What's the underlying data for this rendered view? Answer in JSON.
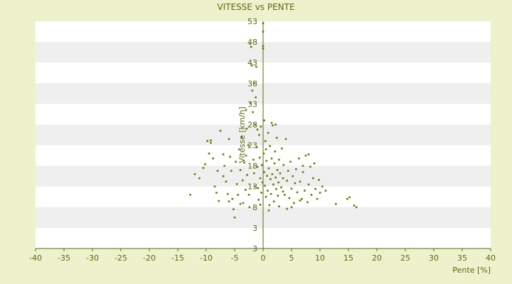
{
  "chart_data": {
    "type": "scatter",
    "title": "VITESSE vs PENTE",
    "xlabel": "Pente [%]",
    "ylabel": "Vitesse [km/h]",
    "xlim": [
      -40,
      40
    ],
    "ylim": [
      3,
      53
    ],
    "x_ticks": [
      "-40",
      "-35",
      "-30",
      "-25",
      "-20",
      "-15",
      "-10",
      "-5",
      "0",
      "5",
      "10",
      "15",
      "20",
      "25",
      "30",
      "35",
      "40"
    ],
    "y_ticks": [
      "3",
      "3",
      "8",
      "13",
      "18",
      "23",
      "28",
      "33",
      "38",
      "43",
      "48",
      "53"
    ],
    "y_tick_values": [
      0,
      3,
      8,
      13,
      18,
      23,
      28,
      33,
      38,
      43,
      48,
      53
    ],
    "grid": "horizontal bands",
    "colors": {
      "background": "#eef2cc",
      "band_light": "#ffffff",
      "band_dark": "#efefef",
      "text": "#5a6a10",
      "marker": "#6b7a00",
      "axis": "#5a6a10"
    },
    "points": [
      [
        -12.8,
        11.0
      ],
      [
        -12.0,
        16.0
      ],
      [
        -11.2,
        15.0
      ],
      [
        -10.5,
        17.5
      ],
      [
        -10.2,
        18.4
      ],
      [
        -9.8,
        24.0
      ],
      [
        -9.5,
        21.0
      ],
      [
        -9.2,
        23.6
      ],
      [
        -8.8,
        19.8
      ],
      [
        -8.5,
        13.0
      ],
      [
        -8.2,
        11.5
      ],
      [
        -7.8,
        9.5
      ],
      [
        -7.5,
        26.5
      ],
      [
        -7.0,
        15.5
      ],
      [
        -6.8,
        18.0
      ],
      [
        -6.5,
        14.2
      ],
      [
        -6.2,
        11.2
      ],
      [
        -6.0,
        24.5
      ],
      [
        -5.8,
        20.2
      ],
      [
        -5.6,
        16.8
      ],
      [
        -5.4,
        10.0
      ],
      [
        -5.2,
        7.5
      ],
      [
        -5.0,
        5.5
      ],
      [
        -4.8,
        19.0
      ],
      [
        -4.6,
        13.6
      ],
      [
        -4.4,
        11.0
      ],
      [
        -4.2,
        22.0
      ],
      [
        -4.0,
        17.0
      ],
      [
        -3.8,
        25.0
      ],
      [
        -3.6,
        14.5
      ],
      [
        -3.5,
        9.0
      ],
      [
        -3.3,
        18.8
      ],
      [
        -3.1,
        12.2
      ],
      [
        -3.0,
        20.5
      ],
      [
        -2.9,
        27.0
      ],
      [
        -2.8,
        15.8
      ],
      [
        -2.6,
        23.0
      ],
      [
        -2.5,
        11.0
      ],
      [
        -2.4,
        8.0
      ],
      [
        -2.3,
        47.6
      ],
      [
        -2.1,
        46.8
      ],
      [
        -2.0,
        42.3
      ],
      [
        -1.9,
        36.2
      ],
      [
        -1.8,
        31.0
      ],
      [
        -1.7,
        19.5
      ],
      [
        -1.6,
        16.2
      ],
      [
        -1.5,
        13.0
      ],
      [
        -1.4,
        28.0
      ],
      [
        -1.3,
        34.6
      ],
      [
        -1.2,
        42.0
      ],
      [
        -1.1,
        22.5
      ],
      [
        -1.0,
        17.8
      ],
      [
        -0.9,
        12.6
      ],
      [
        -0.8,
        9.8
      ],
      [
        -0.7,
        25.5
      ],
      [
        -0.6,
        20.0
      ],
      [
        -0.5,
        15.0
      ],
      [
        -0.4,
        27.5
      ],
      [
        -0.3,
        11.5
      ],
      [
        -0.2,
        18.2
      ],
      [
        -0.1,
        14.0
      ],
      [
        0.0,
        52.5
      ],
      [
        0.0,
        50.5
      ],
      [
        0.0,
        47.0
      ],
      [
        0.0,
        46.4
      ],
      [
        0.1,
        21.0
      ],
      [
        0.2,
        16.5
      ],
      [
        0.3,
        13.2
      ],
      [
        0.4,
        24.0
      ],
      [
        0.5,
        10.5
      ],
      [
        0.6,
        19.2
      ],
      [
        0.7,
        15.6
      ],
      [
        0.8,
        12.0
      ],
      [
        0.9,
        26.0
      ],
      [
        1.0,
        17.4
      ],
      [
        1.1,
        8.5
      ],
      [
        1.2,
        22.8
      ],
      [
        1.3,
        14.8
      ],
      [
        1.4,
        11.2
      ],
      [
        1.5,
        19.8
      ],
      [
        1.6,
        16.0
      ],
      [
        1.7,
        27.8
      ],
      [
        1.8,
        13.5
      ],
      [
        1.9,
        9.4
      ],
      [
        2.0,
        18.6
      ],
      [
        2.1,
        21.5
      ],
      [
        2.2,
        15.2
      ],
      [
        2.3,
        12.4
      ],
      [
        2.4,
        24.8
      ],
      [
        2.5,
        17.0
      ],
      [
        2.6,
        10.8
      ],
      [
        2.7,
        14.0
      ],
      [
        2.8,
        19.5
      ],
      [
        3.0,
        16.2
      ],
      [
        3.2,
        12.8
      ],
      [
        3.3,
        22.2
      ],
      [
        3.5,
        15.0
      ],
      [
        3.6,
        18.2
      ],
      [
        3.8,
        11.0
      ],
      [
        4.0,
        24.5
      ],
      [
        4.2,
        14.4
      ],
      [
        4.4,
        16.8
      ],
      [
        4.6,
        10.2
      ],
      [
        4.8,
        19.0
      ],
      [
        5.0,
        12.5
      ],
      [
        5.2,
        15.5
      ],
      [
        5.4,
        9.0
      ],
      [
        5.6,
        13.8
      ],
      [
        5.8,
        17.2
      ],
      [
        6.0,
        11.6
      ],
      [
        6.3,
        19.8
      ],
      [
        6.5,
        14.2
      ],
      [
        6.8,
        10.0
      ],
      [
        7.0,
        16.5
      ],
      [
        7.3,
        12.0
      ],
      [
        7.5,
        20.5
      ],
      [
        7.8,
        9.2
      ],
      [
        8.0,
        13.5
      ],
      [
        8.3,
        17.8
      ],
      [
        8.5,
        11.0
      ],
      [
        8.8,
        15.0
      ],
      [
        9.0,
        18.6
      ],
      [
        9.2,
        12.4
      ],
      [
        9.5,
        10.0
      ],
      [
        9.8,
        14.6
      ],
      [
        10.0,
        11.5
      ],
      [
        10.4,
        13.0
      ],
      [
        11.0,
        12.0
      ],
      [
        12.8,
        8.8
      ],
      [
        14.8,
        10.0
      ],
      [
        15.2,
        10.4
      ],
      [
        16.0,
        8.4
      ],
      [
        16.4,
        8.0
      ],
      [
        -9.2,
        24.2
      ],
      [
        -3.0,
        31.5
      ],
      [
        -2.2,
        33.2
      ],
      [
        -1.6,
        38.0
      ],
      [
        1.5,
        28.4
      ],
      [
        2.2,
        28.0
      ],
      [
        0.5,
        22.0
      ],
      [
        -0.5,
        8.6
      ],
      [
        1.0,
        7.2
      ],
      [
        2.8,
        8.2
      ],
      [
        4.2,
        7.6
      ],
      [
        5.0,
        8.0
      ],
      [
        -4.0,
        8.8
      ],
      [
        3.5,
        11.8
      ],
      [
        6.5,
        9.6
      ],
      [
        7.0,
        18.0
      ],
      [
        8.0,
        20.8
      ],
      [
        -7.0,
        20.8
      ],
      [
        -8.0,
        16.8
      ],
      [
        -6.0,
        9.4
      ],
      [
        -1.0,
        26.8
      ],
      [
        0.2,
        29.0
      ]
    ]
  }
}
